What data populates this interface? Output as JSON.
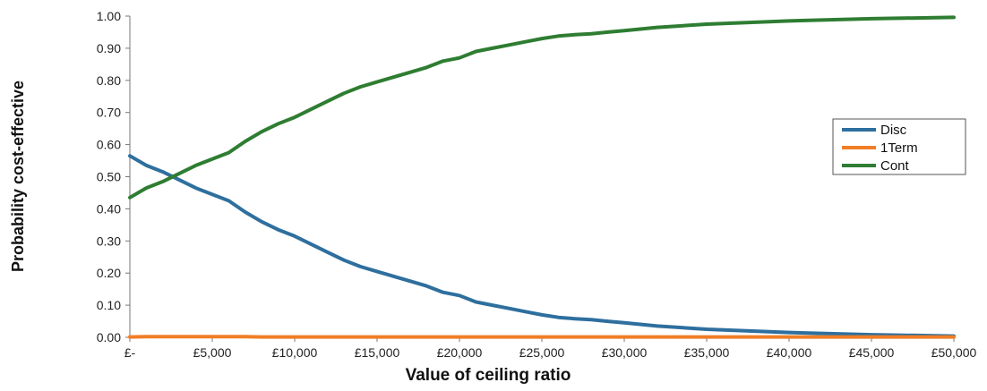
{
  "chart_data": {
    "type": "line",
    "xlabel": "Value of ceiling ratio",
    "ylabel": "Probability cost-effective",
    "xlim": [
      0,
      50000
    ],
    "ylim": [
      0,
      1
    ],
    "x_tick_labels": [
      "£-",
      "£5,000",
      "£10,000",
      "£15,000",
      "£20,000",
      "£25,000",
      "£30,000",
      "£35,000",
      "£40,000",
      "£45,000",
      "£50,000"
    ],
    "y_tick_labels": [
      "0.00",
      "0.10",
      "0.20",
      "0.30",
      "0.40",
      "0.50",
      "0.60",
      "0.70",
      "0.80",
      "0.90",
      "1.00"
    ],
    "legend_position": "right",
    "x": [
      0,
      1000,
      2000,
      3000,
      4000,
      5000,
      6000,
      7000,
      8000,
      9000,
      10000,
      11000,
      12000,
      13000,
      14000,
      15000,
      16000,
      17000,
      18000,
      19000,
      20000,
      21000,
      22000,
      23000,
      24000,
      25000,
      26000,
      27000,
      28000,
      29000,
      30000,
      32000,
      35000,
      40000,
      45000,
      50000
    ],
    "series": [
      {
        "name": "Disc",
        "color": "#2e6f9e",
        "values": [
          0.565,
          0.535,
          0.515,
          0.49,
          0.465,
          0.445,
          0.425,
          0.39,
          0.36,
          0.335,
          0.315,
          0.29,
          0.265,
          0.24,
          0.22,
          0.205,
          0.19,
          0.175,
          0.16,
          0.14,
          0.13,
          0.11,
          0.1,
          0.09,
          0.08,
          0.07,
          0.062,
          0.058,
          0.055,
          0.05,
          0.045,
          0.035,
          0.025,
          0.015,
          0.008,
          0.004
        ]
      },
      {
        "name": "1Term",
        "color": "#f07e26",
        "values": [
          0.001,
          0.002,
          0.002,
          0.002,
          0.002,
          0.002,
          0.002,
          0.002,
          0.001,
          0.001,
          0.001,
          0.001,
          0.001,
          0.001,
          0.001,
          0.001,
          0.001,
          0.001,
          0.001,
          0.001,
          0.001,
          0.001,
          0.001,
          0.001,
          0.001,
          0.001,
          0.001,
          0.001,
          0.001,
          0.001,
          0.001,
          0.001,
          0.001,
          0.001,
          0.001,
          0.001
        ]
      },
      {
        "name": "Cont",
        "color": "#2e7d32",
        "values": [
          0.435,
          0.465,
          0.485,
          0.51,
          0.535,
          0.555,
          0.575,
          0.61,
          0.64,
          0.665,
          0.685,
          0.71,
          0.735,
          0.76,
          0.78,
          0.795,
          0.81,
          0.825,
          0.84,
          0.86,
          0.87,
          0.89,
          0.9,
          0.91,
          0.92,
          0.93,
          0.938,
          0.942,
          0.945,
          0.95,
          0.955,
          0.965,
          0.975,
          0.985,
          0.992,
          0.996
        ]
      }
    ]
  }
}
